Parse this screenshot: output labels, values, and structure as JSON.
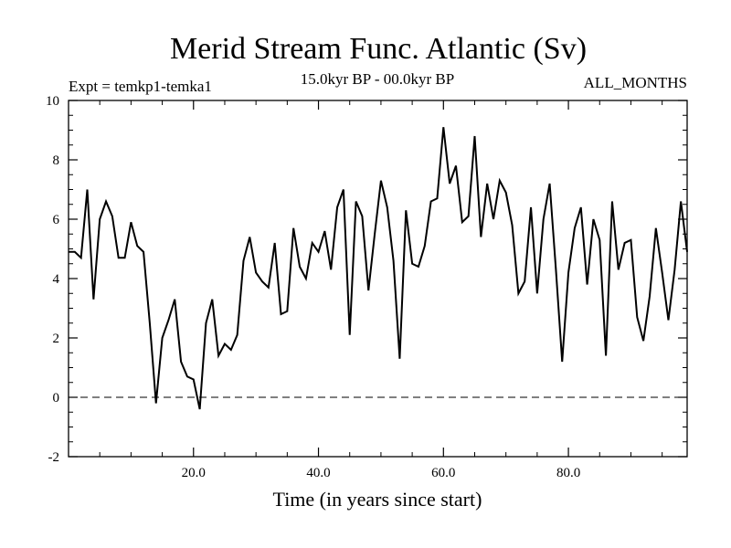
{
  "chart_data": {
    "type": "line",
    "title": "Merid Stream Func. Atlantic (Sv)",
    "subtitle_left": "Expt = temkp1-temka1",
    "subtitle_center": "15.0kyr BP - 00.0kyr BP",
    "subtitle_right": "ALL_MONTHS",
    "xlabel": "Time (in years since start)",
    "ylabel": "",
    "xlim": [
      0,
      99
    ],
    "ylim": [
      -2,
      10
    ],
    "xticks": [
      20,
      40,
      60,
      80
    ],
    "xtick_labels": [
      "20.0",
      "40.0",
      "60.0",
      "80.0"
    ],
    "yticks": [
      -2,
      0,
      2,
      4,
      6,
      8,
      10
    ],
    "ytick_labels": [
      "-2",
      "0",
      "2",
      "4",
      "6",
      "8",
      "10"
    ],
    "reference_line": 0,
    "grid": false,
    "series": [
      {
        "name": "Atlantic",
        "x": [
          0,
          1,
          2,
          3,
          4,
          5,
          6,
          7,
          8,
          9,
          10,
          11,
          12,
          13,
          14,
          15,
          16,
          17,
          18,
          19,
          20,
          21,
          22,
          23,
          24,
          25,
          26,
          27,
          28,
          29,
          30,
          31,
          32,
          33,
          34,
          35,
          36,
          37,
          38,
          39,
          40,
          41,
          42,
          43,
          44,
          45,
          46,
          47,
          48,
          49,
          50,
          51,
          52,
          53,
          54,
          55,
          56,
          57,
          58,
          59,
          60,
          61,
          62,
          63,
          64,
          65,
          66,
          67,
          68,
          69,
          70,
          71,
          72,
          73,
          74,
          75,
          76,
          77,
          78,
          79,
          80,
          81,
          82,
          83,
          84,
          85,
          86,
          87,
          88,
          89,
          90,
          91,
          92,
          93,
          94,
          95,
          96,
          97,
          98,
          99
        ],
        "values": [
          4.9,
          4.9,
          4.7,
          7.0,
          3.3,
          6.0,
          6.6,
          6.1,
          4.7,
          4.7,
          5.9,
          5.1,
          4.9,
          2.5,
          -0.2,
          2.0,
          2.6,
          3.3,
          1.2,
          0.7,
          0.6,
          -0.4,
          2.5,
          3.3,
          1.4,
          1.8,
          1.6,
          2.1,
          4.6,
          5.4,
          4.2,
          3.9,
          3.7,
          5.2,
          2.8,
          2.9,
          5.7,
          4.4,
          4.0,
          5.2,
          4.9,
          5.6,
          4.3,
          6.4,
          7.0,
          2.1,
          6.6,
          6.1,
          3.6,
          5.5,
          7.3,
          6.4,
          4.6,
          1.3,
          6.3,
          4.5,
          4.4,
          5.1,
          6.6,
          6.7,
          9.1,
          7.2,
          7.8,
          5.9,
          6.1,
          8.8,
          5.4,
          7.2,
          6.0,
          7.3,
          6.9,
          5.8,
          3.5,
          3.9,
          6.4,
          3.5,
          6.0,
          7.2,
          4.3,
          1.2,
          4.2,
          5.7,
          6.4,
          3.8,
          6.0,
          5.3,
          1.4,
          6.6,
          4.3,
          5.2,
          5.3,
          2.7,
          1.9,
          3.4,
          5.7,
          4.2,
          2.6,
          4.3,
          6.6,
          4.9
        ]
      }
    ]
  }
}
